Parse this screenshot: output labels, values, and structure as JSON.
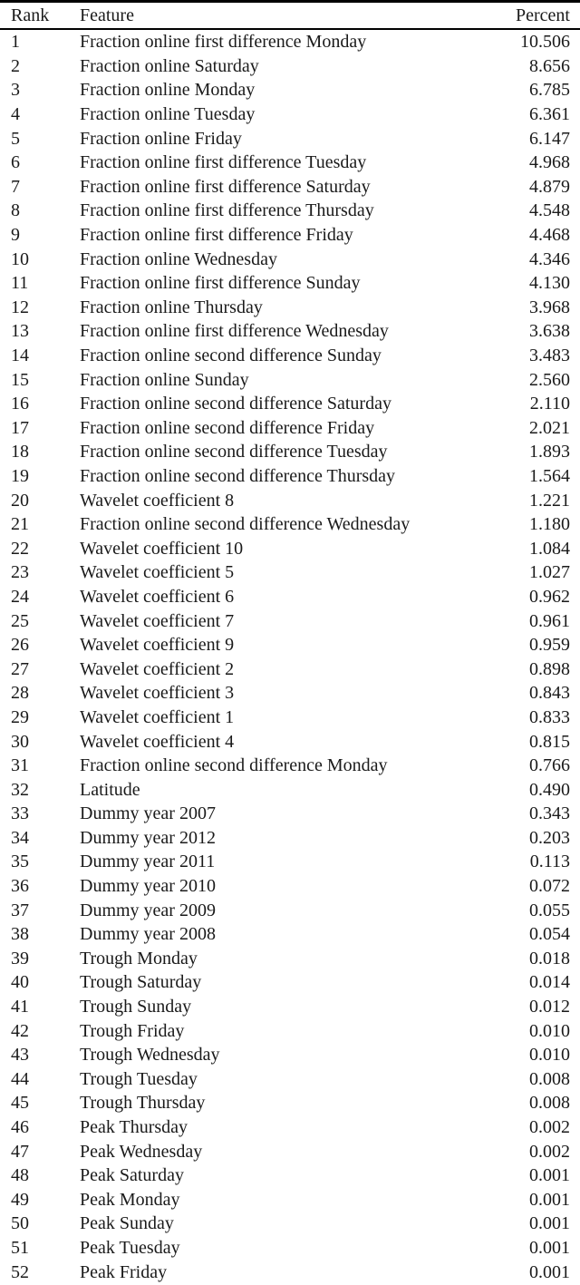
{
  "colors": {
    "background": "#ffffff",
    "text": "#1a1a1a",
    "rule": "#000000"
  },
  "table": {
    "columns": [
      "Rank",
      "Feature",
      "Percent"
    ],
    "rows": [
      {
        "rank": "1",
        "feature": "Fraction online first difference Monday",
        "percent": "10.506"
      },
      {
        "rank": "2",
        "feature": "Fraction online Saturday",
        "percent": "8.656"
      },
      {
        "rank": "3",
        "feature": "Fraction online Monday",
        "percent": "6.785"
      },
      {
        "rank": "4",
        "feature": "Fraction online Tuesday",
        "percent": "6.361"
      },
      {
        "rank": "5",
        "feature": "Fraction online Friday",
        "percent": "6.147"
      },
      {
        "rank": "6",
        "feature": "Fraction online first difference Tuesday",
        "percent": "4.968"
      },
      {
        "rank": "7",
        "feature": "Fraction online first difference Saturday",
        "percent": "4.879"
      },
      {
        "rank": "8",
        "feature": "Fraction online first difference Thursday",
        "percent": "4.548"
      },
      {
        "rank": "9",
        "feature": "Fraction online first difference Friday",
        "percent": "4.468"
      },
      {
        "rank": "10",
        "feature": "Fraction online Wednesday",
        "percent": "4.346"
      },
      {
        "rank": "11",
        "feature": "Fraction online first difference Sunday",
        "percent": "4.130"
      },
      {
        "rank": "12",
        "feature": "Fraction online Thursday",
        "percent": "3.968"
      },
      {
        "rank": "13",
        "feature": "Fraction online first difference Wednesday",
        "percent": "3.638"
      },
      {
        "rank": "14",
        "feature": "Fraction online second difference Sunday",
        "percent": "3.483"
      },
      {
        "rank": "15",
        "feature": "Fraction online Sunday",
        "percent": "2.560"
      },
      {
        "rank": "16",
        "feature": "Fraction online second difference Saturday",
        "percent": "2.110"
      },
      {
        "rank": "17",
        "feature": "Fraction online second difference Friday",
        "percent": "2.021"
      },
      {
        "rank": "18",
        "feature": "Fraction online second difference Tuesday",
        "percent": "1.893"
      },
      {
        "rank": "19",
        "feature": "Fraction online second difference Thursday",
        "percent": "1.564"
      },
      {
        "rank": "20",
        "feature": "Wavelet coefficient 8",
        "percent": "1.221"
      },
      {
        "rank": "21",
        "feature": "Fraction online second difference Wednesday",
        "percent": "1.180"
      },
      {
        "rank": "22",
        "feature": "Wavelet coefficient 10",
        "percent": "1.084"
      },
      {
        "rank": "23",
        "feature": "Wavelet coefficient 5",
        "percent": "1.027"
      },
      {
        "rank": "24",
        "feature": "Wavelet coefficient 6",
        "percent": "0.962"
      },
      {
        "rank": "25",
        "feature": "Wavelet coefficient 7",
        "percent": "0.961"
      },
      {
        "rank": "26",
        "feature": "Wavelet coefficient 9",
        "percent": "0.959"
      },
      {
        "rank": "27",
        "feature": "Wavelet coefficient 2",
        "percent": "0.898"
      },
      {
        "rank": "28",
        "feature": "Wavelet coefficient 3",
        "percent": "0.843"
      },
      {
        "rank": "29",
        "feature": "Wavelet coefficient 1",
        "percent": "0.833"
      },
      {
        "rank": "30",
        "feature": "Wavelet coefficient 4",
        "percent": "0.815"
      },
      {
        "rank": "31",
        "feature": "Fraction online second difference Monday",
        "percent": "0.766"
      },
      {
        "rank": "32",
        "feature": "Latitude",
        "percent": "0.490"
      },
      {
        "rank": "33",
        "feature": "Dummy year 2007",
        "percent": "0.343"
      },
      {
        "rank": "34",
        "feature": "Dummy year 2012",
        "percent": "0.203"
      },
      {
        "rank": "35",
        "feature": "Dummy year 2011",
        "percent": "0.113"
      },
      {
        "rank": "36",
        "feature": "Dummy year 2010",
        "percent": "0.072"
      },
      {
        "rank": "37",
        "feature": "Dummy year 2009",
        "percent": "0.055"
      },
      {
        "rank": "38",
        "feature": "Dummy year 2008",
        "percent": "0.054"
      },
      {
        "rank": "39",
        "feature": "Trough Monday",
        "percent": "0.018"
      },
      {
        "rank": "40",
        "feature": "Trough Saturday",
        "percent": "0.014"
      },
      {
        "rank": "41",
        "feature": "Trough Sunday",
        "percent": "0.012"
      },
      {
        "rank": "42",
        "feature": "Trough Friday",
        "percent": "0.010"
      },
      {
        "rank": "43",
        "feature": "Trough Wednesday",
        "percent": "0.010"
      },
      {
        "rank": "44",
        "feature": "Trough Tuesday",
        "percent": "0.008"
      },
      {
        "rank": "45",
        "feature": "Trough Thursday",
        "percent": "0.008"
      },
      {
        "rank": "46",
        "feature": "Peak Thursday",
        "percent": "0.002"
      },
      {
        "rank": "47",
        "feature": "Peak Wednesday",
        "percent": "0.002"
      },
      {
        "rank": "48",
        "feature": "Peak Saturday",
        "percent": "0.001"
      },
      {
        "rank": "49",
        "feature": "Peak Monday",
        "percent": "0.001"
      },
      {
        "rank": "50",
        "feature": "Peak Sunday",
        "percent": "0.001"
      },
      {
        "rank": "51",
        "feature": "Peak Tuesday",
        "percent": "0.001"
      },
      {
        "rank": "52",
        "feature": "Peak Friday",
        "percent": "0.001"
      }
    ]
  }
}
